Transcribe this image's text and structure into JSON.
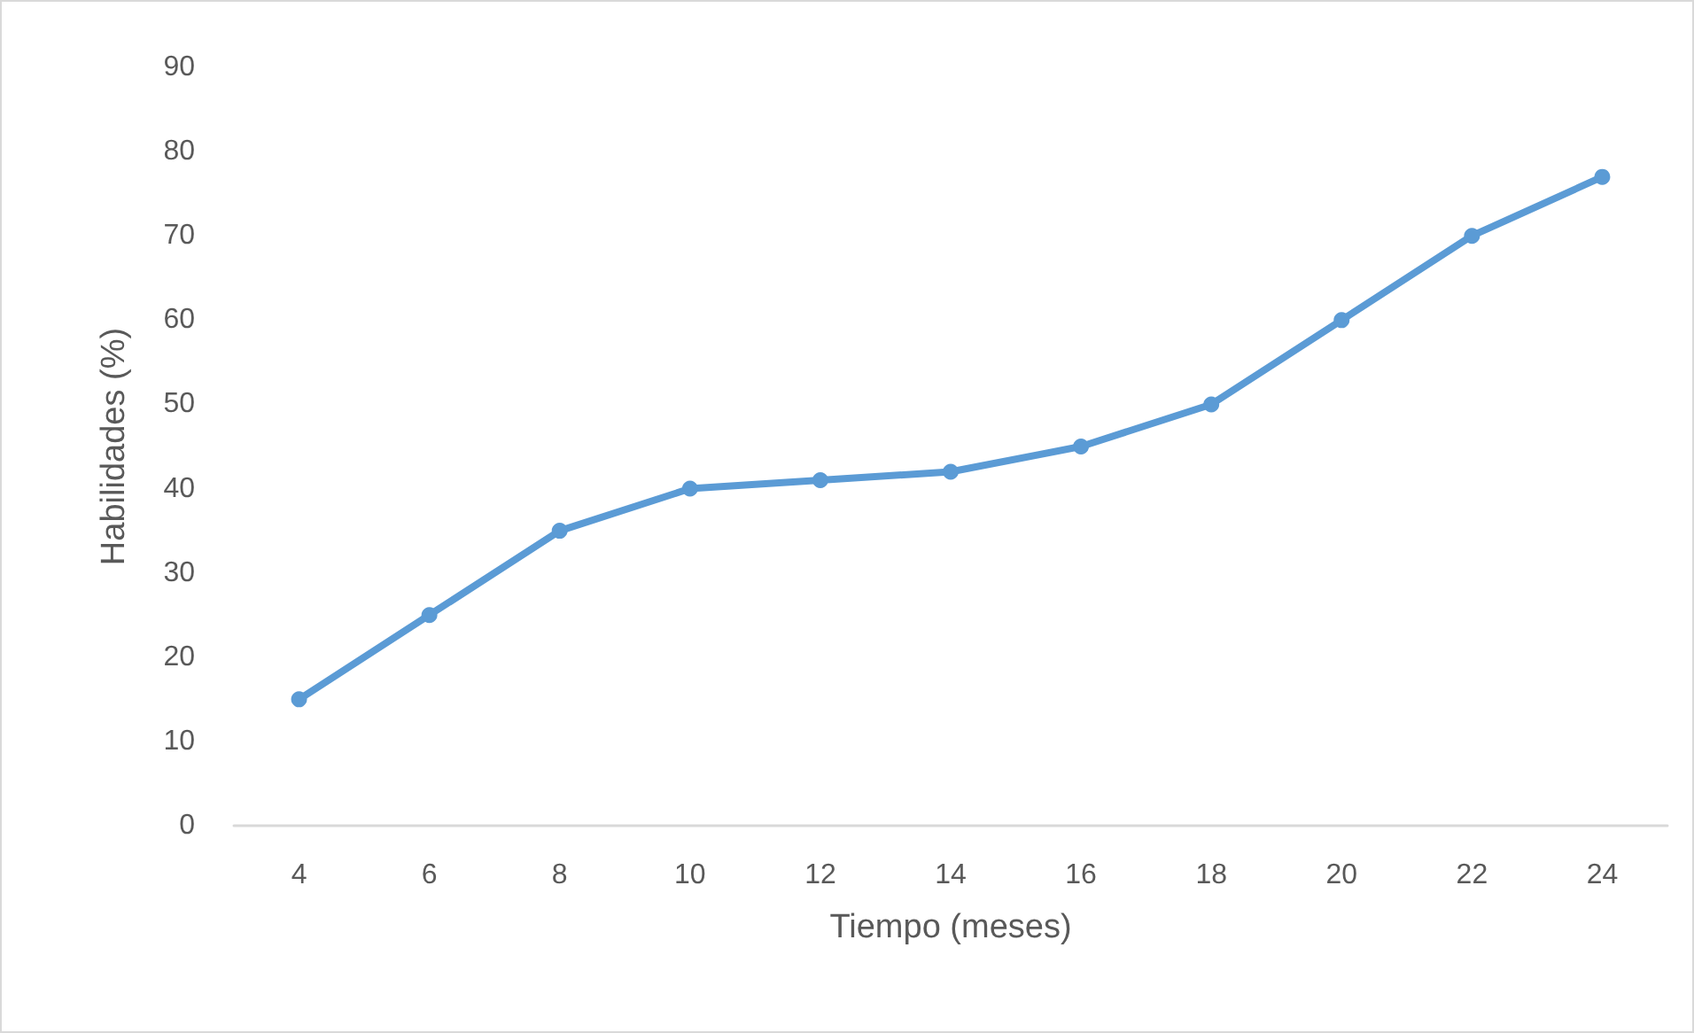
{
  "chart_data": {
    "type": "line",
    "xlabel": "Tiempo (meses)",
    "ylabel": "Habilidades (%)",
    "categories": [
      "4",
      "6",
      "8",
      "10",
      "12",
      "14",
      "16",
      "18",
      "20",
      "22",
      "24"
    ],
    "series": [
      {
        "color": "#5b9bd5",
        "values": [
          15,
          25,
          35,
          40,
          41,
          42,
          45,
          50,
          60,
          70,
          77
        ]
      }
    ],
    "ylim": [
      0,
      90
    ],
    "yticks": [
      0,
      10,
      20,
      30,
      40,
      50,
      60,
      70,
      80,
      90
    ],
    "grid": false,
    "marker": "circle",
    "line_style": "solid"
  }
}
